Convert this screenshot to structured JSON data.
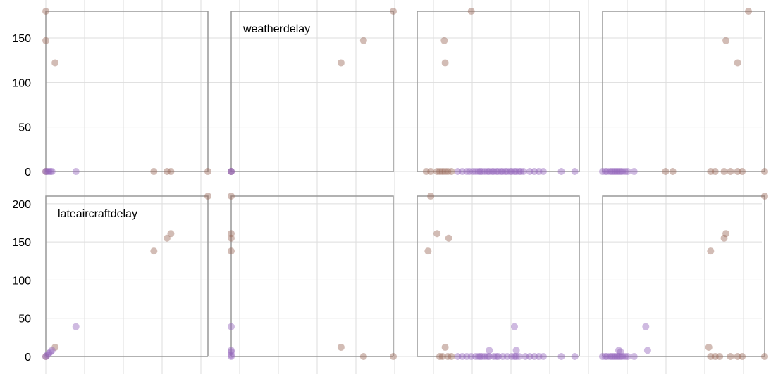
{
  "chart_data": {
    "type": "scatter",
    "layout": "scatterplot-matrix",
    "colors": {
      "brown": "#9c6b5a",
      "purple": "#9467bd",
      "grid": "#dddddd",
      "frame": "#999999"
    },
    "point_opacity": 0.45,
    "rows": [
      {
        "variable": "weatherdelay",
        "ylim": [
          0,
          180
        ],
        "yticks": [
          0,
          50,
          100,
          150
        ],
        "ytick_labels": [
          "0",
          "50",
          "100",
          "150"
        ]
      },
      {
        "variable": "lateaircraftdelay",
        "ylim": [
          0,
          210
        ],
        "yticks": [
          0,
          50,
          100,
          150,
          200
        ],
        "ytick_labels": [
          "0",
          "50",
          "100",
          "150",
          "200"
        ]
      }
    ],
    "panels": [
      {
        "row": 0,
        "col": 0,
        "title": "",
        "xlim": [
          0,
          210
        ],
        "brown": [
          [
            0,
            180
          ],
          [
            0,
            147
          ],
          [
            12,
            122
          ],
          [
            0,
            0
          ],
          [
            140,
            0
          ],
          [
            157,
            0
          ],
          [
            162,
            0
          ],
          [
            210,
            0
          ]
        ],
        "purple": [
          [
            0,
            0
          ],
          [
            2,
            0
          ],
          [
            4,
            0
          ],
          [
            6,
            0
          ],
          [
            8,
            0
          ],
          [
            39,
            0
          ]
        ]
      },
      {
        "row": 0,
        "col": 1,
        "title": "weatherdelay",
        "xlim": [
          0,
          180
        ],
        "brown": [
          [
            180,
            180
          ],
          [
            147,
            147
          ],
          [
            122,
            122
          ],
          [
            0,
            0
          ]
        ],
        "purple": [
          [
            0,
            0
          ],
          [
            0,
            0
          ]
        ]
      },
      {
        "row": 0,
        "col": 2,
        "title": "",
        "xlim": [
          0,
          180
        ],
        "brown": [
          [
            60,
            180
          ],
          [
            30,
            147
          ],
          [
            31,
            122
          ],
          [
            10,
            0
          ],
          [
            15,
            0
          ],
          [
            22,
            0
          ],
          [
            25,
            0
          ],
          [
            28,
            0
          ],
          [
            31,
            0
          ],
          [
            34,
            0
          ],
          [
            38,
            0
          ]
        ],
        "purple": [
          [
            45,
            0
          ],
          [
            50,
            0
          ],
          [
            55,
            0
          ],
          [
            58,
            0
          ],
          [
            62,
            0
          ],
          [
            65,
            0
          ],
          [
            68,
            0
          ],
          [
            70,
            0
          ],
          [
            72,
            0
          ],
          [
            75,
            0
          ],
          [
            78,
            0
          ],
          [
            80,
            0
          ],
          [
            83,
            0
          ],
          [
            85,
            0
          ],
          [
            88,
            0
          ],
          [
            90,
            0
          ],
          [
            93,
            0
          ],
          [
            95,
            0
          ],
          [
            98,
            0
          ],
          [
            100,
            0
          ],
          [
            103,
            0
          ],
          [
            105,
            0
          ],
          [
            108,
            0
          ],
          [
            110,
            0
          ],
          [
            113,
            0
          ],
          [
            115,
            0
          ],
          [
            118,
            0
          ],
          [
            125,
            0
          ],
          [
            130,
            0
          ],
          [
            135,
            0
          ],
          [
            140,
            0
          ],
          [
            160,
            0
          ],
          [
            175,
            0
          ]
        ]
      },
      {
        "row": 0,
        "col": 3,
        "title": "",
        "xlim": [
          0,
          180
        ],
        "brown": [
          [
            150,
            122
          ],
          [
            137,
            147
          ],
          [
            162,
            180
          ],
          [
            70,
            0
          ],
          [
            78,
            0
          ],
          [
            120,
            0
          ],
          [
            125,
            0
          ],
          [
            135,
            0
          ],
          [
            142,
            0
          ],
          [
            150,
            0
          ],
          [
            155,
            0
          ],
          [
            180,
            0
          ]
        ],
        "purple": [
          [
            0,
            0
          ],
          [
            3,
            0
          ],
          [
            5,
            0
          ],
          [
            8,
            0
          ],
          [
            10,
            0
          ],
          [
            12,
            0
          ],
          [
            14,
            0
          ],
          [
            16,
            0
          ],
          [
            18,
            0
          ],
          [
            20,
            0
          ],
          [
            22,
            0
          ],
          [
            25,
            0
          ],
          [
            28,
            0
          ],
          [
            35,
            0
          ]
        ]
      },
      {
        "row": 1,
        "col": 0,
        "title": "lateaircraftdelay",
        "xlim": [
          0,
          210
        ],
        "brown": [
          [
            210,
            210
          ],
          [
            140,
            138
          ],
          [
            157,
            155
          ],
          [
            162,
            161
          ],
          [
            12,
            12
          ],
          [
            0,
            0
          ]
        ],
        "purple": [
          [
            0,
            0
          ],
          [
            2,
            2
          ],
          [
            4,
            4
          ],
          [
            6,
            6
          ],
          [
            8,
            8
          ],
          [
            39,
            39
          ]
        ]
      },
      {
        "row": 1,
        "col": 1,
        "title": "",
        "xlim": [
          0,
          180
        ],
        "brown": [
          [
            0,
            210
          ],
          [
            0,
            161
          ],
          [
            0,
            155
          ],
          [
            0,
            138
          ],
          [
            122,
            12
          ],
          [
            147,
            0
          ],
          [
            180,
            0
          ]
        ],
        "purple": [
          [
            0,
            39
          ],
          [
            0,
            8
          ],
          [
            0,
            6
          ],
          [
            0,
            2
          ],
          [
            0,
            0
          ]
        ]
      },
      {
        "row": 1,
        "col": 2,
        "title": "",
        "xlim": [
          0,
          180
        ],
        "brown": [
          [
            15,
            210
          ],
          [
            22,
            161
          ],
          [
            35,
            155
          ],
          [
            12,
            138
          ],
          [
            31,
            12
          ],
          [
            25,
            0
          ],
          [
            28,
            0
          ],
          [
            34,
            0
          ],
          [
            38,
            0
          ]
        ],
        "purple": [
          [
            45,
            0
          ],
          [
            50,
            0
          ],
          [
            55,
            0
          ],
          [
            60,
            0
          ],
          [
            65,
            0
          ],
          [
            68,
            0
          ],
          [
            70,
            0
          ],
          [
            72,
            0
          ],
          [
            75,
            0
          ],
          [
            78,
            0
          ],
          [
            80,
            0
          ],
          [
            85,
            0
          ],
          [
            88,
            0
          ],
          [
            90,
            0
          ],
          [
            95,
            0
          ],
          [
            100,
            0
          ],
          [
            105,
            0
          ],
          [
            108,
            0
          ],
          [
            110,
            0
          ],
          [
            113,
            0
          ],
          [
            120,
            0
          ],
          [
            125,
            0
          ],
          [
            130,
            0
          ],
          [
            135,
            0
          ],
          [
            140,
            0
          ],
          [
            160,
            0
          ],
          [
            175,
            0
          ],
          [
            80,
            8
          ],
          [
            110,
            8
          ],
          [
            108,
            39
          ]
        ]
      },
      {
        "row": 1,
        "col": 3,
        "title": "",
        "xlim": [
          0,
          180
        ],
        "brown": [
          [
            180,
            210
          ],
          [
            137,
            161
          ],
          [
            135,
            155
          ],
          [
            120,
            138
          ],
          [
            118,
            12
          ],
          [
            120,
            0
          ],
          [
            125,
            0
          ],
          [
            130,
            0
          ],
          [
            142,
            0
          ],
          [
            150,
            0
          ],
          [
            155,
            0
          ],
          [
            180,
            0
          ]
        ],
        "purple": [
          [
            0,
            0
          ],
          [
            3,
            0
          ],
          [
            5,
            0
          ],
          [
            8,
            0
          ],
          [
            10,
            0
          ],
          [
            12,
            0
          ],
          [
            14,
            0
          ],
          [
            16,
            0
          ],
          [
            18,
            0
          ],
          [
            20,
            0
          ],
          [
            22,
            0
          ],
          [
            25,
            0
          ],
          [
            28,
            0
          ],
          [
            35,
            0
          ],
          [
            18,
            8
          ],
          [
            20,
            6
          ],
          [
            48,
            39
          ],
          [
            50,
            8
          ]
        ]
      }
    ]
  }
}
